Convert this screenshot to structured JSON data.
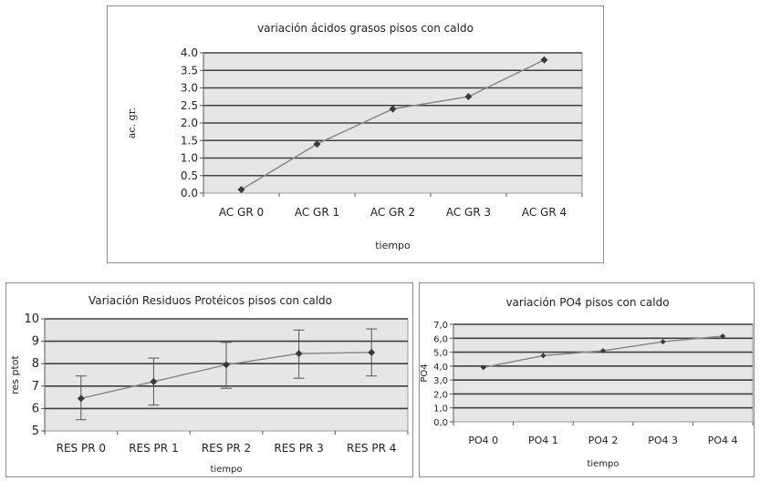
{
  "colors": {
    "plot_bg": "#e6e6e6",
    "grid": "#404040",
    "line": "#8a8a8a",
    "marker": "#3a3a3a",
    "frame": "#8c8c8c"
  },
  "chart_data": [
    {
      "type": "line",
      "title": "variación ácidos grasos pisos con caldo",
      "xlabel": "tiempo",
      "ylabel": "ac. gr.",
      "categories": [
        "AC GR 0",
        "AC GR 1",
        "AC GR 2",
        "AC GR 3",
        "AC GR 4"
      ],
      "values": [
        0.1,
        1.4,
        2.4,
        2.75,
        3.8
      ],
      "ylim": [
        0,
        4
      ],
      "yticks": [
        "0.0",
        "0.5",
        "1.0",
        "1.5",
        "2.0",
        "2.5",
        "3.0",
        "3.5",
        "4.0"
      ],
      "grid": true,
      "legend": "none"
    },
    {
      "type": "line",
      "title": "Variación Residuos Protéicos pisos con caldo",
      "xlabel": "tiempo",
      "ylabel": "res ptot",
      "categories": [
        "RES PR 0",
        "RES PR 1",
        "RES PR 2",
        "RES PR 3",
        "RES PR 4"
      ],
      "values": [
        6.45,
        7.2,
        7.95,
        8.45,
        8.5
      ],
      "error_low": [
        5.5,
        6.15,
        6.9,
        7.35,
        7.45
      ],
      "error_high": [
        7.45,
        8.25,
        8.95,
        9.5,
        9.55
      ],
      "ylim": [
        5,
        10
      ],
      "yticks": [
        "5",
        "6",
        "7",
        "8",
        "9",
        "10"
      ],
      "grid": true,
      "legend": "none"
    },
    {
      "type": "line",
      "title": "variación PO4 pisos con caldo",
      "xlabel": "tiempo",
      "ylabel": "PO4",
      "categories": [
        "PO4 0",
        "PO4 1",
        "PO4 2",
        "PO4 3",
        "PO4 4"
      ],
      "values": [
        3.9,
        4.75,
        5.1,
        5.75,
        6.15
      ],
      "ylim": [
        0,
        7
      ],
      "yticks": [
        "0,0",
        "1,0",
        "2,0",
        "3,0",
        "4,0",
        "5,0",
        "6,0",
        "7,0"
      ],
      "grid": true,
      "legend": "none"
    }
  ]
}
